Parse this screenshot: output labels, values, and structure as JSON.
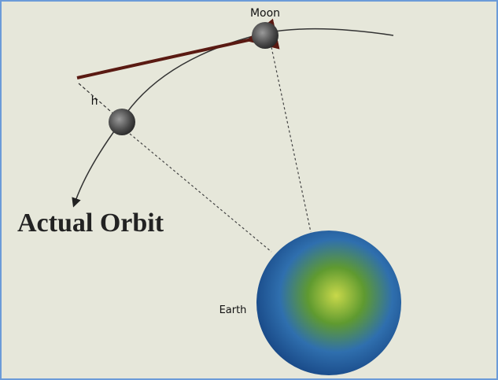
{
  "labels": {
    "moon": "Moon",
    "h": "h",
    "actual_orbit": "Actual Orbit",
    "earth": "Earth"
  }
}
